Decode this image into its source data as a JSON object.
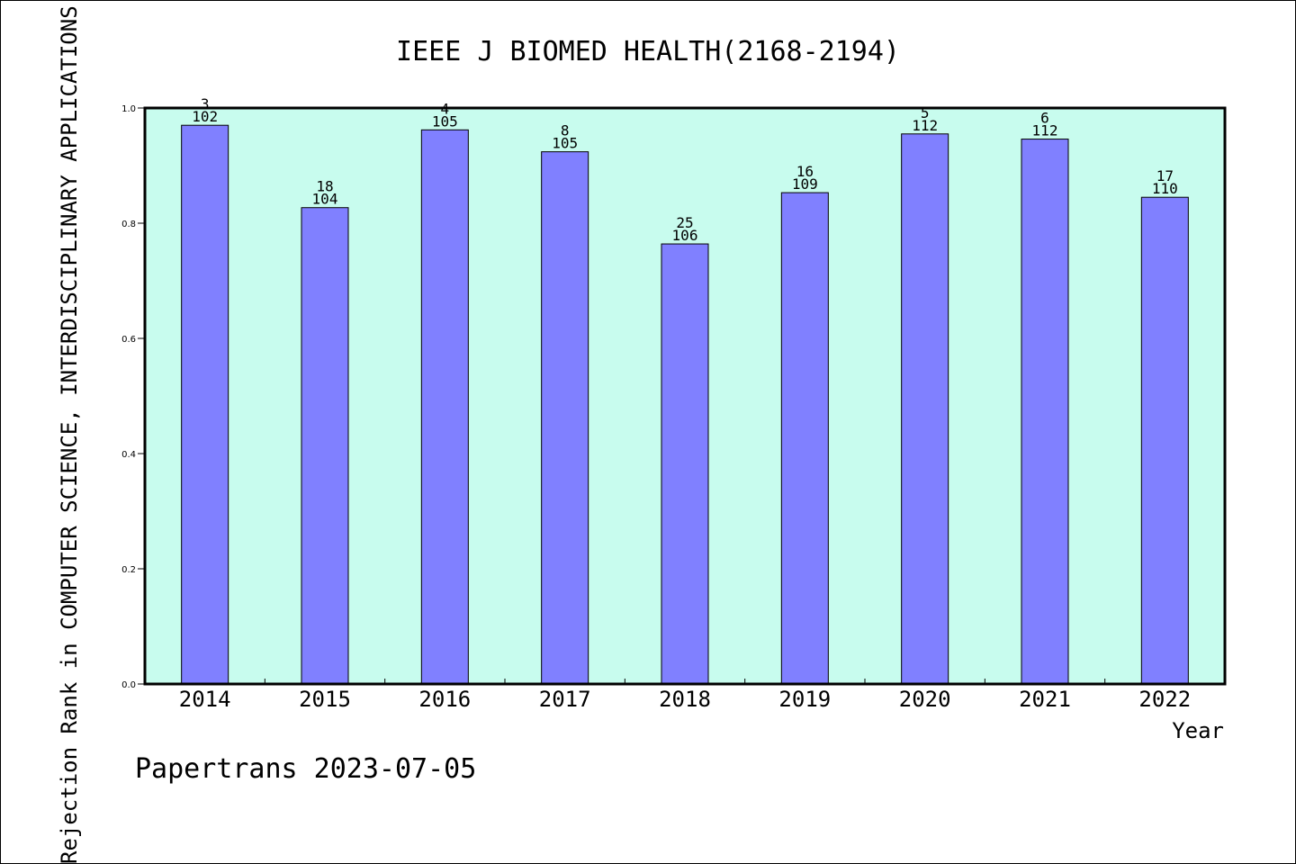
{
  "chart_data": {
    "type": "bar",
    "title": "IEEE J BIOMED HEALTH(2168-2194)",
    "xlabel": "Year",
    "ylabel": "Rejection Rank in COMPUTER SCIENCE,  INTERDISCIPLINARY APPLICATIONS",
    "ylim": [
      0,
      1.0
    ],
    "yticks": [
      "0.0",
      "0.2",
      "0.4",
      "0.6",
      "0.8",
      "1.0"
    ],
    "categories": [
      "2014",
      "2015",
      "2016",
      "2017",
      "2018",
      "2019",
      "2020",
      "2021",
      "2022"
    ],
    "values": [
      0.97,
      0.827,
      0.962,
      0.924,
      0.764,
      0.853,
      0.955,
      0.946,
      0.845
    ],
    "rank_labels": [
      "3",
      "18",
      "4",
      "8",
      "25",
      "16",
      "5",
      "6",
      "17"
    ],
    "total_labels": [
      "102",
      "104",
      "105",
      "105",
      "106",
      "109",
      "112",
      "112",
      "110"
    ],
    "grid": false,
    "colors": {
      "plot_bg": "#c8fcee",
      "bar": "#8080ff",
      "bar_edge": "#000000"
    }
  },
  "footer": {
    "text": "Papertrans 2023-07-05"
  }
}
